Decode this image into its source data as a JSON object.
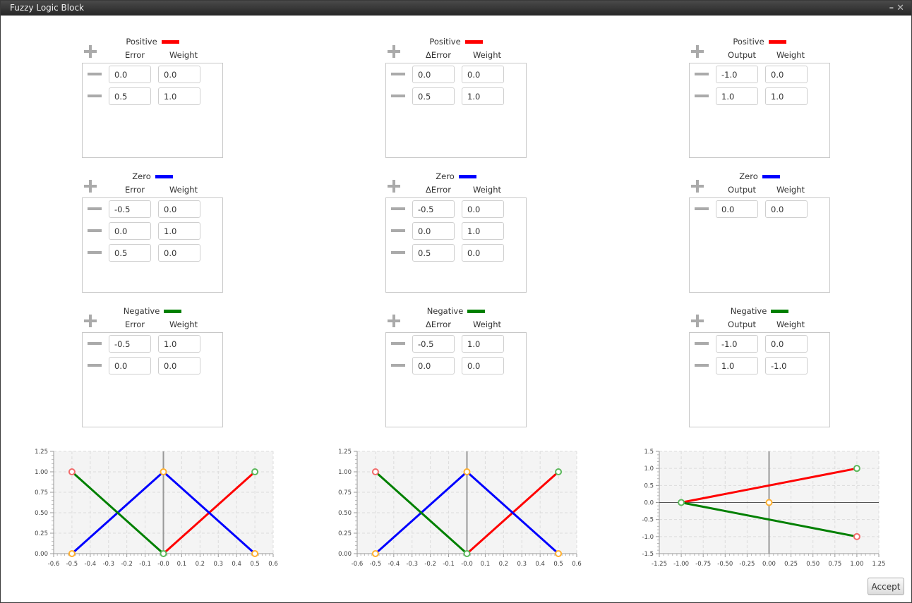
{
  "window": {
    "title": "Fuzzy Logic Block",
    "minimize_icon": "minimize-icon",
    "close_icon": "close-icon"
  },
  "colors": {
    "Positive": "#ff0000",
    "Zero": "#0000ff",
    "Negative": "#008000"
  },
  "columns": [
    {
      "var_label": "Error",
      "weight_label": "Weight",
      "sets": [
        {
          "name": "Positive",
          "color": "#ff0000",
          "rows": [
            [
              "0.0",
              "0.0"
            ],
            [
              "0.5",
              "1.0"
            ]
          ]
        },
        {
          "name": "Zero",
          "color": "#0000ff",
          "rows": [
            [
              "-0.5",
              "0.0"
            ],
            [
              "0.0",
              "1.0"
            ],
            [
              "0.5",
              "0.0"
            ]
          ]
        },
        {
          "name": "Negative",
          "color": "#008000",
          "rows": [
            [
              "-0.5",
              "1.0"
            ],
            [
              "0.0",
              "0.0"
            ]
          ]
        }
      ]
    },
    {
      "var_label": "ΔError",
      "weight_label": "Weight",
      "sets": [
        {
          "name": "Positive",
          "color": "#ff0000",
          "rows": [
            [
              "0.0",
              "0.0"
            ],
            [
              "0.5",
              "1.0"
            ]
          ]
        },
        {
          "name": "Zero",
          "color": "#0000ff",
          "rows": [
            [
              "-0.5",
              "0.0"
            ],
            [
              "0.0",
              "1.0"
            ],
            [
              "0.5",
              "0.0"
            ]
          ]
        },
        {
          "name": "Negative",
          "color": "#008000",
          "rows": [
            [
              "-0.5",
              "1.0"
            ],
            [
              "0.0",
              "0.0"
            ]
          ]
        }
      ]
    },
    {
      "var_label": "Output",
      "weight_label": "Weight",
      "sets": [
        {
          "name": "Positive",
          "color": "#ff0000",
          "rows": [
            [
              "-1.0",
              "0.0"
            ],
            [
              "1.0",
              "1.0"
            ]
          ]
        },
        {
          "name": "Zero",
          "color": "#0000ff",
          "rows": [
            [
              "0.0",
              "0.0"
            ]
          ]
        },
        {
          "name": "Negative",
          "color": "#008000",
          "rows": [
            [
              "-1.0",
              "0.0"
            ],
            [
              "1.0",
              "-1.0"
            ]
          ]
        }
      ]
    }
  ],
  "chart_data": [
    {
      "type": "line",
      "xlim": [
        -0.6,
        0.6
      ],
      "ylim": [
        0,
        1.25
      ],
      "grid": true,
      "xticks": [
        "-0.6",
        "-0.5",
        "-0.4",
        "-0.3",
        "-0.2",
        "-0.1",
        "-0.0",
        "0.1",
        "0.2",
        "0.3",
        "0.4",
        "0.5",
        "0.6"
      ],
      "yticks": [
        "0.00",
        "0.25",
        "0.50",
        "0.75",
        "1.00",
        "1.25"
      ],
      "series": [
        {
          "color": "#ff0000",
          "points": [
            [
              0,
              0
            ],
            [
              0.5,
              1
            ]
          ]
        },
        {
          "color": "#0000ff",
          "points": [
            [
              -0.5,
              0
            ],
            [
              0,
              1
            ],
            [
              0.5,
              0
            ]
          ]
        },
        {
          "color": "#008000",
          "points": [
            [
              -0.5,
              1
            ],
            [
              0,
              0
            ]
          ]
        }
      ],
      "markers": [
        {
          "x": -0.5,
          "y": 1,
          "color": "#f26b6b"
        },
        {
          "x": 0,
          "y": 1,
          "color": "#ffb030"
        },
        {
          "x": 0.5,
          "y": 1,
          "color": "#5cb85c"
        },
        {
          "x": -0.5,
          "y": 0,
          "color": "#ffb030"
        },
        {
          "x": 0,
          "y": 0,
          "color": "#5cb85c"
        },
        {
          "x": 0.5,
          "y": 0,
          "color": "#ffb030"
        }
      ]
    },
    {
      "type": "line",
      "xlim": [
        -0.6,
        0.6
      ],
      "ylim": [
        0,
        1.25
      ],
      "grid": true,
      "xticks": [
        "-0.6",
        "-0.5",
        "-0.4",
        "-0.3",
        "-0.2",
        "-0.1",
        "-0.0",
        "0.1",
        "0.2",
        "0.3",
        "0.4",
        "0.5",
        "0.6"
      ],
      "yticks": [
        "0.00",
        "0.25",
        "0.50",
        "0.75",
        "1.00",
        "1.25"
      ],
      "series": [
        {
          "color": "#ff0000",
          "points": [
            [
              0,
              0
            ],
            [
              0.5,
              1
            ]
          ]
        },
        {
          "color": "#0000ff",
          "points": [
            [
              -0.5,
              0
            ],
            [
              0,
              1
            ],
            [
              0.5,
              0
            ]
          ]
        },
        {
          "color": "#008000",
          "points": [
            [
              -0.5,
              1
            ],
            [
              0,
              0
            ]
          ]
        }
      ],
      "markers": [
        {
          "x": -0.5,
          "y": 1,
          "color": "#f26b6b"
        },
        {
          "x": 0,
          "y": 1,
          "color": "#ffb030"
        },
        {
          "x": 0.5,
          "y": 1,
          "color": "#5cb85c"
        },
        {
          "x": -0.5,
          "y": 0,
          "color": "#ffb030"
        },
        {
          "x": 0,
          "y": 0,
          "color": "#5cb85c"
        },
        {
          "x": 0.5,
          "y": 0,
          "color": "#ffb030"
        }
      ]
    },
    {
      "type": "line",
      "xlim": [
        -1.25,
        1.25
      ],
      "ylim": [
        -1.5,
        1.5
      ],
      "grid": true,
      "xticks": [
        "-1.25",
        "-1.00",
        "-0.75",
        "-0.50",
        "-0.25",
        "0.00",
        "0.25",
        "0.50",
        "0.75",
        "1.00",
        "1.25"
      ],
      "yticks": [
        "-1.5",
        "-1.0",
        "-0.5",
        "0.0",
        "0.5",
        "1.0",
        "1.5"
      ],
      "series": [
        {
          "color": "#ff0000",
          "points": [
            [
              -1,
              0
            ],
            [
              1,
              1
            ]
          ]
        },
        {
          "color": "#008000",
          "points": [
            [
              -1,
              0
            ],
            [
              1,
              -1
            ]
          ]
        }
      ],
      "markers": [
        {
          "x": -1,
          "y": 0,
          "color": "#5cb85c"
        },
        {
          "x": 0,
          "y": 0,
          "color": "#ffb030"
        },
        {
          "x": 1,
          "y": 1,
          "color": "#5cb85c"
        },
        {
          "x": 1,
          "y": -1,
          "color": "#f26b6b"
        }
      ]
    }
  ],
  "footer": {
    "accept_label": "Accept"
  }
}
